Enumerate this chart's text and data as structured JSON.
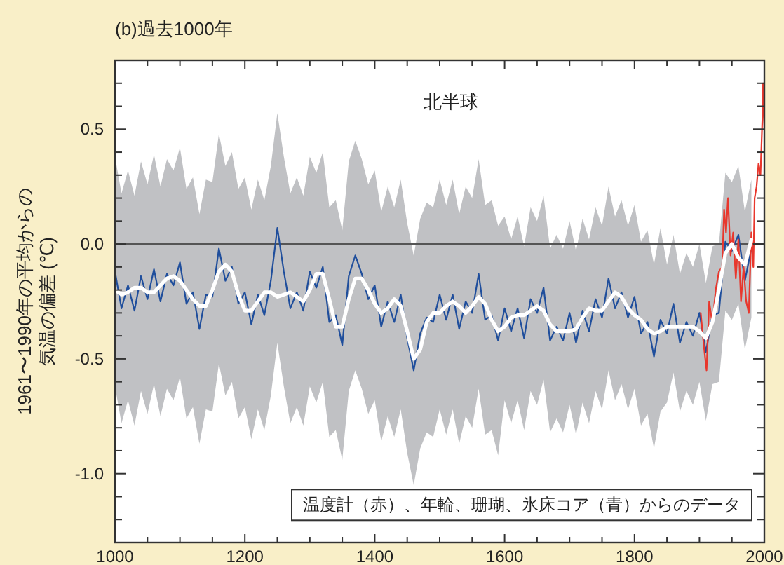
{
  "chart_data": {
    "type": "line",
    "title": "(b)過去1000年",
    "ylabel": "1961〜1990年の平均からの気温の偏差 (℃)",
    "annotations": [
      "北半球",
      "温度計（赤）、年輪、珊瑚、氷床コア（青）からのデータ"
    ],
    "xlim": [
      1000,
      2000
    ],
    "ylim": [
      -1.3,
      0.8
    ],
    "xticks": [
      1000,
      {
        "value": 1050,
        "label": null
      },
      {
        "value": 1100,
        "label": null
      },
      {
        "value": 1150,
        "label": null
      },
      1200,
      {
        "value": 1250,
        "label": null
      },
      {
        "value": 1300,
        "label": null
      },
      {
        "value": 1350,
        "label": null
      },
      1400,
      {
        "value": 1450,
        "label": null
      },
      {
        "value": 1500,
        "label": null
      },
      {
        "value": 1550,
        "label": null
      },
      1600,
      {
        "value": 1650,
        "label": null
      },
      {
        "value": 1700,
        "label": null
      },
      {
        "value": 1750,
        "label": null
      },
      1800,
      {
        "value": 1850,
        "label": null
      },
      {
        "value": 1900,
        "label": null
      },
      {
        "value": 1950,
        "label": null
      },
      2000
    ],
    "yticks": [
      {
        "value": -1.2,
        "label": null
      },
      {
        "value": -1.1,
        "label": null
      },
      {
        "value": -1.0,
        "label": "-1.0"
      },
      {
        "value": -0.9,
        "label": null
      },
      {
        "value": -0.8,
        "label": null
      },
      {
        "value": -0.7,
        "label": null
      },
      {
        "value": -0.6,
        "label": null
      },
      {
        "value": -0.5,
        "label": "-0.5"
      },
      {
        "value": -0.4,
        "label": null
      },
      {
        "value": -0.3,
        "label": null
      },
      {
        "value": -0.2,
        "label": null
      },
      {
        "value": -0.1,
        "label": null
      },
      {
        "value": 0.0,
        "label": "0.0"
      },
      {
        "value": 0.1,
        "label": null
      },
      {
        "value": 0.2,
        "label": null
      },
      {
        "value": 0.3,
        "label": null
      },
      {
        "value": 0.4,
        "label": null
      },
      {
        "value": 0.5,
        "label": "0.5"
      },
      {
        "value": 0.6,
        "label": null
      },
      {
        "value": 0.7,
        "label": null
      }
    ],
    "ref_lines": [
      {
        "axis": "y",
        "value": 0,
        "color": "#555555"
      }
    ],
    "x": [
      1000,
      1010,
      1020,
      1030,
      1040,
      1050,
      1060,
      1070,
      1080,
      1090,
      1100,
      1110,
      1120,
      1130,
      1140,
      1150,
      1160,
      1170,
      1180,
      1190,
      1200,
      1210,
      1220,
      1230,
      1240,
      1250,
      1260,
      1270,
      1280,
      1290,
      1300,
      1310,
      1320,
      1330,
      1340,
      1350,
      1360,
      1370,
      1380,
      1390,
      1400,
      1410,
      1420,
      1430,
      1440,
      1450,
      1460,
      1470,
      1480,
      1490,
      1500,
      1510,
      1520,
      1530,
      1540,
      1550,
      1560,
      1570,
      1580,
      1590,
      1600,
      1610,
      1620,
      1630,
      1640,
      1650,
      1660,
      1670,
      1680,
      1690,
      1700,
      1710,
      1720,
      1730,
      1740,
      1750,
      1760,
      1770,
      1780,
      1790,
      1800,
      1810,
      1820,
      1830,
      1840,
      1850,
      1860,
      1870,
      1880,
      1890,
      1900,
      1910,
      1920,
      1930,
      1940,
      1950,
      1960,
      1970,
      1980
    ],
    "series": [
      {
        "color": "#1f4e9c",
        "values": [
          -0.12,
          -0.28,
          -0.18,
          -0.29,
          -0.14,
          -0.24,
          -0.11,
          -0.25,
          -0.13,
          -0.18,
          -0.08,
          -0.26,
          -0.21,
          -0.37,
          -0.22,
          -0.23,
          -0.02,
          -0.16,
          -0.1,
          -0.26,
          -0.21,
          -0.35,
          -0.22,
          -0.31,
          -0.16,
          0.07,
          -0.12,
          -0.28,
          -0.21,
          -0.29,
          -0.12,
          -0.19,
          -0.1,
          -0.34,
          -0.31,
          -0.44,
          -0.14,
          -0.05,
          -0.13,
          -0.24,
          -0.18,
          -0.36,
          -0.25,
          -0.34,
          -0.22,
          -0.41,
          -0.55,
          -0.39,
          -0.32,
          -0.34,
          -0.22,
          -0.33,
          -0.22,
          -0.37,
          -0.25,
          -0.3,
          -0.13,
          -0.33,
          -0.31,
          -0.42,
          -0.28,
          -0.38,
          -0.28,
          -0.41,
          -0.24,
          -0.3,
          -0.19,
          -0.42,
          -0.36,
          -0.42,
          -0.3,
          -0.43,
          -0.29,
          -0.38,
          -0.24,
          -0.32,
          -0.15,
          -0.28,
          -0.21,
          -0.32,
          -0.23,
          -0.39,
          -0.34,
          -0.49,
          -0.33,
          -0.39,
          -0.26,
          -0.43,
          -0.34,
          -0.4,
          -0.3,
          -0.47,
          -0.31,
          -0.3,
          0.01,
          -0.03,
          0.04,
          -0.16,
          -0.02
        ],
        "upper": [
          0.38,
          0.22,
          0.32,
          0.21,
          0.36,
          0.26,
          0.39,
          0.25,
          0.37,
          0.32,
          0.42,
          0.24,
          0.29,
          0.13,
          0.28,
          0.27,
          0.48,
          0.34,
          0.4,
          0.24,
          0.29,
          0.15,
          0.28,
          0.19,
          0.34,
          0.57,
          0.38,
          0.22,
          0.29,
          0.21,
          0.38,
          0.31,
          0.4,
          0.16,
          0.19,
          0.06,
          0.36,
          0.45,
          0.37,
          0.26,
          0.32,
          0.14,
          0.25,
          0.16,
          0.28,
          0.09,
          -0.05,
          0.11,
          0.18,
          0.16,
          0.28,
          0.17,
          0.28,
          0.13,
          0.25,
          0.2,
          0.37,
          0.17,
          0.19,
          0.08,
          0.12,
          0.02,
          0.12,
          -0.01,
          0.16,
          0.1,
          0.21,
          -0.02,
          0.04,
          -0.02,
          0.1,
          -0.03,
          0.11,
          0.02,
          0.16,
          0.08,
          0.25,
          0.12,
          0.19,
          0.08,
          0.17,
          0.01,
          0.06,
          -0.09,
          0.07,
          -0.09,
          0.04,
          -0.13,
          -0.04,
          -0.1,
          0.0,
          -0.17,
          -0.01,
          0.0,
          0.31,
          0.27,
          0.34,
          0.14,
          0.28
        ],
        "lower": [
          -0.62,
          -0.78,
          -0.68,
          -0.79,
          -0.64,
          -0.74,
          -0.61,
          -0.75,
          -0.63,
          -0.68,
          -0.58,
          -0.76,
          -0.71,
          -0.87,
          -0.72,
          -0.73,
          -0.52,
          -0.66,
          -0.6,
          -0.76,
          -0.71,
          -0.85,
          -0.72,
          -0.81,
          -0.66,
          -0.43,
          -0.62,
          -0.78,
          -0.71,
          -0.79,
          -0.62,
          -0.69,
          -0.6,
          -0.84,
          -0.81,
          -0.94,
          -0.64,
          -0.55,
          -0.63,
          -0.74,
          -0.68,
          -0.86,
          -0.75,
          -0.84,
          -0.72,
          -0.91,
          -1.05,
          -0.89,
          -0.82,
          -0.84,
          -0.72,
          -0.83,
          -0.72,
          -0.87,
          -0.75,
          -0.8,
          -0.63,
          -0.83,
          -0.81,
          -0.92,
          -0.68,
          -0.78,
          -0.68,
          -0.81,
          -0.64,
          -0.7,
          -0.59,
          -0.82,
          -0.76,
          -0.82,
          -0.7,
          -0.83,
          -0.69,
          -0.78,
          -0.64,
          -0.72,
          -0.55,
          -0.68,
          -0.61,
          -0.72,
          -0.63,
          -0.79,
          -0.74,
          -0.89,
          -0.73,
          -0.69,
          -0.56,
          -0.73,
          -0.64,
          -0.7,
          -0.6,
          -0.77,
          -0.61,
          -0.6,
          -0.29,
          -0.33,
          -0.26,
          -0.46,
          -0.32
        ]
      },
      {
        "color": "#e8372d",
        "x": [
          1902,
          1907,
          1911,
          1915,
          1920,
          1925,
          1930,
          1935,
          1938,
          1941,
          1944,
          1948,
          1952,
          1956,
          1960,
          1964,
          1968,
          1972,
          1976,
          1980,
          1983,
          1985,
          1988,
          1991,
          1994,
          1997,
          1998,
          2000
        ],
        "values": [
          -0.3,
          -0.45,
          -0.55,
          -0.25,
          -0.35,
          -0.2,
          -0.12,
          -0.1,
          0.15,
          0.05,
          0.2,
          -0.05,
          0.05,
          -0.15,
          0.02,
          -0.25,
          -0.1,
          -0.25,
          -0.3,
          0.05,
          -0.1,
          0.2,
          0.25,
          0.35,
          0.3,
          0.55,
          0.7,
          0.5
        ]
      },
      {
        "color": "#ffffff",
        "values": [
          -0.2,
          -0.22,
          -0.21,
          -0.19,
          -0.19,
          -0.21,
          -0.21,
          -0.18,
          -0.15,
          -0.14,
          -0.16,
          -0.2,
          -0.24,
          -0.27,
          -0.27,
          -0.2,
          -0.12,
          -0.09,
          -0.12,
          -0.22,
          -0.29,
          -0.29,
          -0.25,
          -0.21,
          -0.21,
          -0.23,
          -0.22,
          -0.21,
          -0.23,
          -0.25,
          -0.2,
          -0.13,
          -0.13,
          -0.24,
          -0.36,
          -0.36,
          -0.24,
          -0.15,
          -0.15,
          -0.2,
          -0.26,
          -0.3,
          -0.28,
          -0.24,
          -0.27,
          -0.38,
          -0.5,
          -0.46,
          -0.34,
          -0.3,
          -0.3,
          -0.27,
          -0.25,
          -0.27,
          -0.3,
          -0.27,
          -0.23,
          -0.26,
          -0.33,
          -0.38,
          -0.36,
          -0.32,
          -0.31,
          -0.31,
          -0.29,
          -0.27,
          -0.29,
          -0.35,
          -0.38,
          -0.38,
          -0.38,
          -0.37,
          -0.32,
          -0.28,
          -0.29,
          -0.29,
          -0.25,
          -0.21,
          -0.23,
          -0.28,
          -0.31,
          -0.33,
          -0.37,
          -0.39,
          -0.38,
          -0.36,
          -0.36,
          -0.36,
          -0.36,
          -0.36,
          -0.38,
          -0.41,
          -0.34,
          -0.2,
          -0.04,
          0.0,
          -0.06,
          -0.09,
          0.02
        ]
      }
    ]
  }
}
